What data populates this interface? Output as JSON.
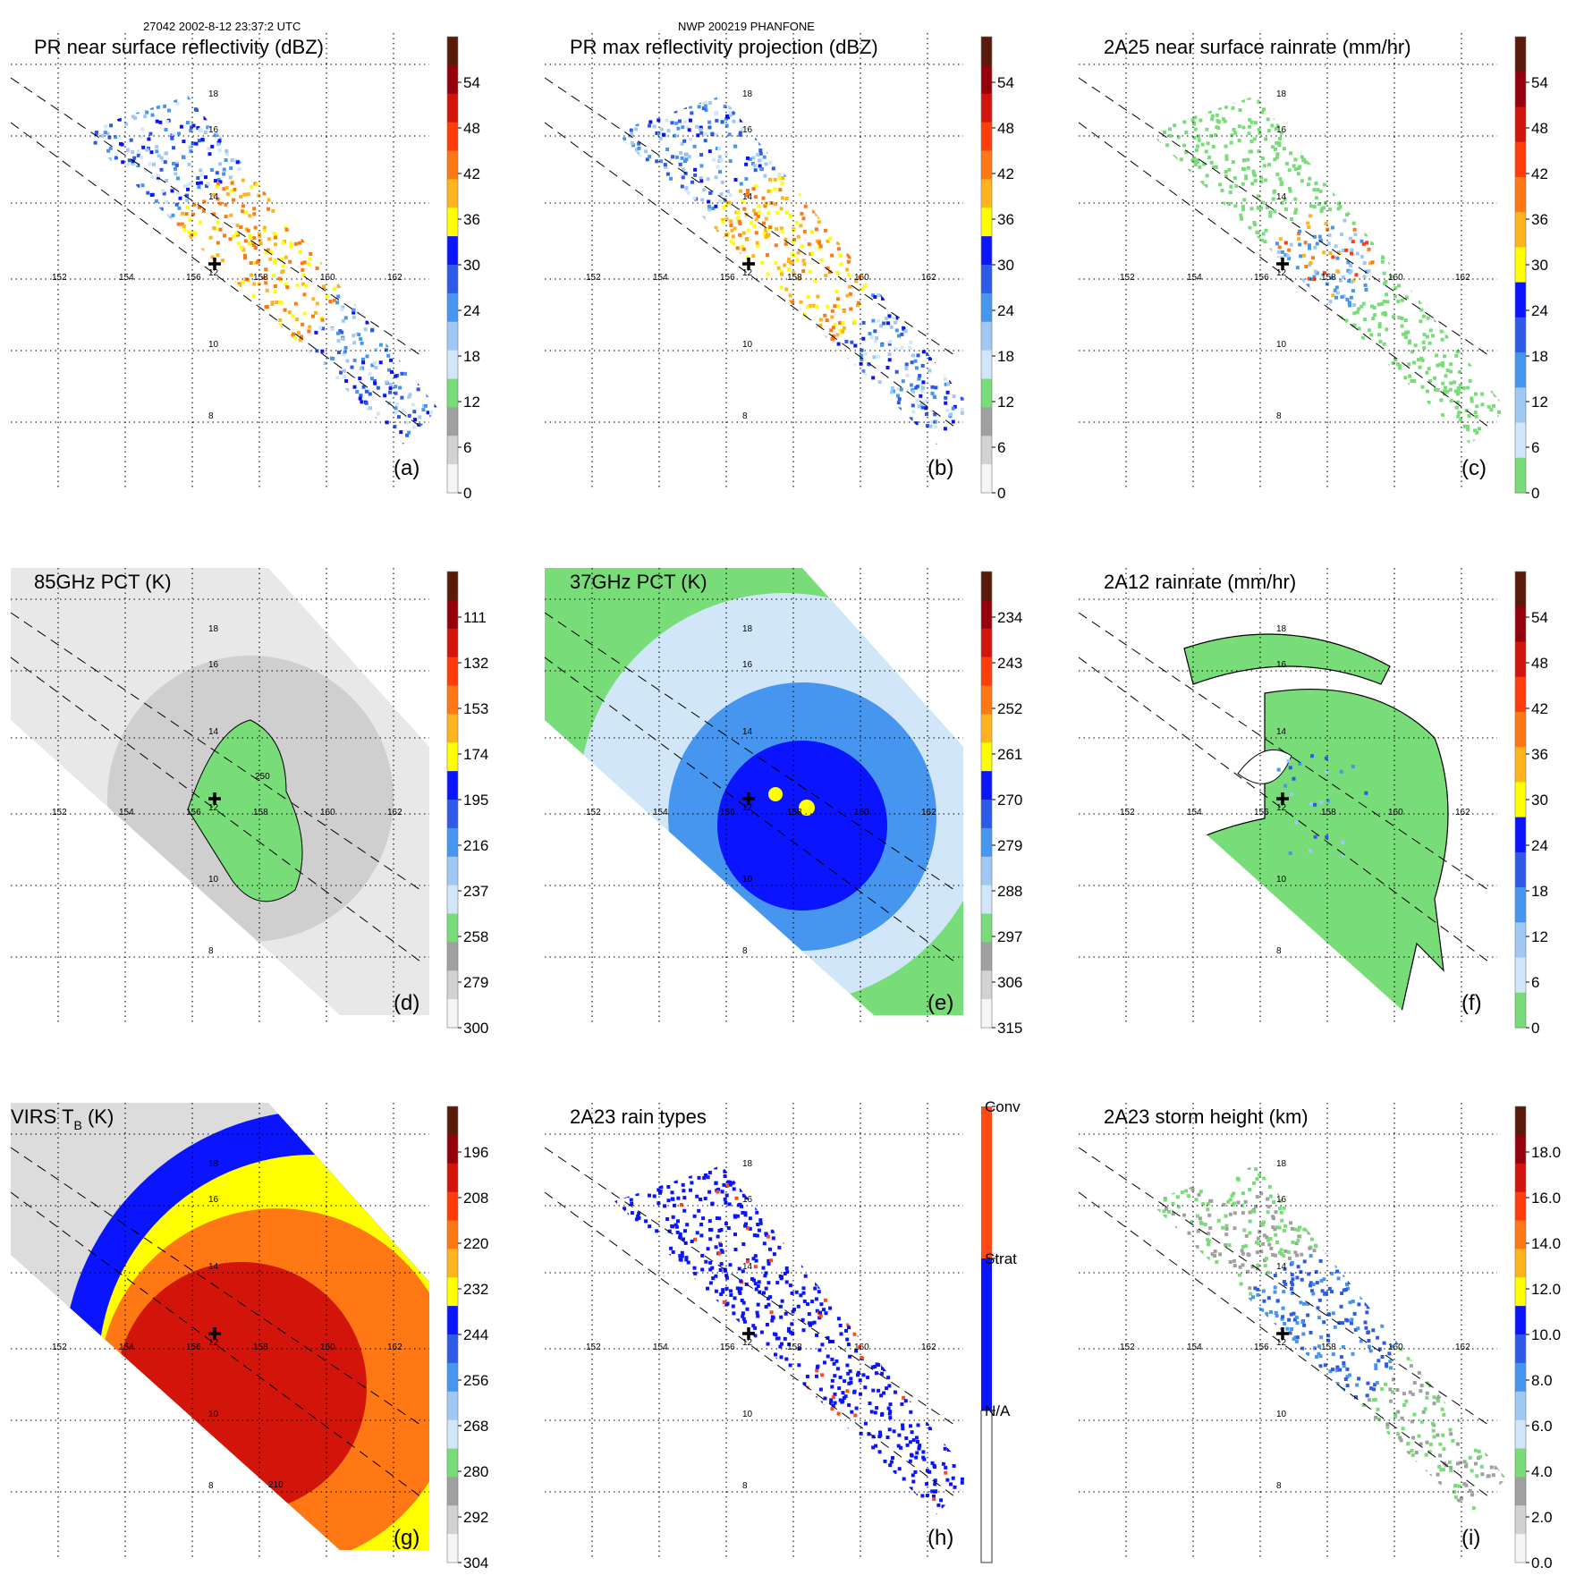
{
  "header": {
    "orbit_time": "27042 2002-8-12 23:37:2 UTC",
    "storm_id": "NWP 200219 PHANFONE"
  },
  "longitudes": [
    "152",
    "154",
    "156",
    "158",
    "160",
    "162"
  ],
  "latitudes": [
    "18",
    "16",
    "14",
    "12",
    "10",
    "8"
  ],
  "panels": [
    {
      "title": "PR near surface reflectivity (dBZ)",
      "letter": "(a)",
      "ticks": [
        "54",
        "48",
        "42",
        "36",
        "30",
        "24",
        "18",
        "12",
        "6",
        "0"
      ],
      "scale": "reflectivity",
      "swath": "narrow",
      "field": "pr_surface"
    },
    {
      "title": "PR max reflectivity projection (dBZ)",
      "letter": "(b)",
      "ticks": [
        "54",
        "48",
        "42",
        "36",
        "30",
        "24",
        "18",
        "12",
        "6",
        "0"
      ],
      "scale": "reflectivity",
      "swath": "narrow",
      "field": "pr_max"
    },
    {
      "title": "2A25 near surface rainrate (mm/hr)",
      "letter": "(c)",
      "ticks": [
        "54",
        "48",
        "42",
        "36",
        "30",
        "24",
        "18",
        "12",
        "6",
        "0"
      ],
      "scale": "rain",
      "swath": "narrow",
      "field": "rain_2a25"
    },
    {
      "title": "85GHz PCT (K)",
      "letter": "(d)",
      "ticks": [
        "111",
        "132",
        "153",
        "174",
        "195",
        "216",
        "237",
        "258",
        "279",
        "300"
      ],
      "scale": "pct",
      "swath": "wide",
      "field": "pct85",
      "contour_label": "250"
    },
    {
      "title": "37GHz PCT (K)",
      "letter": "(e)",
      "ticks": [
        "234",
        "243",
        "252",
        "261",
        "270",
        "279",
        "288",
        "297",
        "306",
        "315"
      ],
      "scale": "pct",
      "swath": "wide",
      "field": "pct37"
    },
    {
      "title": "2A12 rainrate (mm/hr)",
      "letter": "(f)",
      "ticks": [
        "54",
        "48",
        "42",
        "36",
        "30",
        "24",
        "18",
        "12",
        "6",
        "0"
      ],
      "scale": "rain",
      "swath": "wide",
      "field": "rain_2a12"
    },
    {
      "title_main": "VIRS T",
      "title_sub": "B",
      "title_tail": " (K)",
      "letter": "(g)",
      "ticks": [
        "196",
        "208",
        "220",
        "232",
        "244",
        "256",
        "268",
        "280",
        "292",
        "304"
      ],
      "scale": "pct",
      "swath": "wide",
      "field": "virs",
      "contour_label": "210"
    },
    {
      "title": "2A23 rain types",
      "letter": "(h)",
      "categories": [
        "Conv",
        "Strat",
        "N/A"
      ],
      "category_colors": [
        "#ff4a14",
        "#0a14ff",
        "#ffffff"
      ],
      "scale": "rain_type",
      "swath": "narrow",
      "field": "raintype"
    },
    {
      "title": "2A23 storm height (km)",
      "letter": "(i)",
      "ticks": [
        "18.0",
        "16.0",
        "14.0",
        "12.0",
        "10.0",
        "8.0",
        "6.0",
        "4.0",
        "2.0",
        "0.0"
      ],
      "scale": "height",
      "swath": "narrow",
      "field": "height"
    }
  ],
  "colors": {
    "background": "#ffffff",
    "reflectivity_scale": [
      "#5a1a0a",
      "#96000a",
      "#d2140a",
      "#ff3c0a",
      "#ff7814",
      "#ffb41e",
      "#ffff00",
      "#0a14ff",
      "#2d5ae6",
      "#4696f0",
      "#a0c8f5",
      "#d2e6fa",
      "#78dc78",
      "#a0a0a0",
      "#d2d2d2",
      "#f5f5f5"
    ],
    "pct_scale": [
      "#5a1a0a",
      "#96000a",
      "#d2140a",
      "#ff3c0a",
      "#ff7814",
      "#ffb41e",
      "#ffff00",
      "#0a14ff",
      "#2d5ae6",
      "#4696f0",
      "#a0c8f5",
      "#d2e6fa",
      "#78dc78",
      "#a0a0a0",
      "#d2d2d2",
      "#f5f5f5"
    ],
    "rain_scale": [
      "#5a1a0a",
      "#96000a",
      "#d2140a",
      "#ff3c0a",
      "#ff7814",
      "#ffb41e",
      "#ffff00",
      "#0a14ff",
      "#2d5ae6",
      "#4696f0",
      "#a0c8f5",
      "#d2e6fa",
      "#78dc78"
    ],
    "height_scale": [
      "#5a1a0a",
      "#96000a",
      "#d2140a",
      "#ff3c0a",
      "#ff7814",
      "#ffb41e",
      "#ffff00",
      "#0a14ff",
      "#2d5ae6",
      "#4696f0",
      "#a0c8f5",
      "#d2e6fa",
      "#78dc78",
      "#a0a0a0",
      "#d2d2d2",
      "#f5f5f5"
    ],
    "convective": "#ff4a14",
    "stratiform": "#0a14ff",
    "storm_center": "#000000"
  }
}
